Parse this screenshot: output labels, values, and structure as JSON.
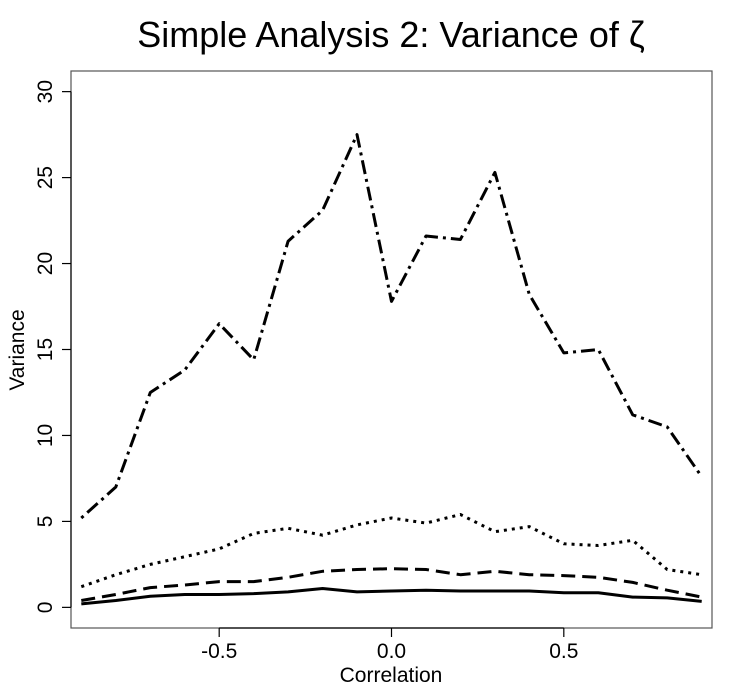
{
  "chart_data": {
    "type": "line",
    "title": "Simple Analysis 2: Variance of ζ",
    "xlabel": "Correlation",
    "ylabel": "Variance",
    "xlim": [
      -0.93,
      0.93
    ],
    "ylim": [
      -1.2,
      31.2
    ],
    "x_ticks": [
      -0.5,
      0.0,
      0.5
    ],
    "x_tick_labels": [
      "-0.5",
      "0.0",
      "0.5"
    ],
    "y_ticks": [
      0,
      5,
      10,
      15,
      20,
      25,
      30
    ],
    "y_tick_labels": [
      "0",
      "5",
      "10",
      "15",
      "20",
      "25",
      "30"
    ],
    "grid": false,
    "x": [
      -0.9,
      -0.8,
      -0.7,
      -0.6,
      -0.5,
      -0.4,
      -0.3,
      -0.2,
      -0.1,
      0.0,
      0.1,
      0.2,
      0.3,
      0.4,
      0.5,
      0.6,
      0.7,
      0.8,
      0.9
    ],
    "series": [
      {
        "style": "solid",
        "values": [
          0.2,
          0.4,
          0.65,
          0.75,
          0.75,
          0.8,
          0.9,
          1.1,
          0.9,
          0.95,
          1.0,
          0.95,
          0.95,
          0.95,
          0.85,
          0.85,
          0.6,
          0.55,
          0.35
        ]
      },
      {
        "style": "dashed",
        "values": [
          0.4,
          0.75,
          1.15,
          1.3,
          1.5,
          1.5,
          1.75,
          2.1,
          2.2,
          2.25,
          2.2,
          1.9,
          2.1,
          1.9,
          1.85,
          1.75,
          1.45,
          1.0,
          0.6
        ]
      },
      {
        "style": "dotted",
        "values": [
          1.2,
          1.9,
          2.5,
          2.95,
          3.4,
          4.3,
          4.6,
          4.2,
          4.8,
          5.2,
          4.9,
          5.4,
          4.4,
          4.7,
          3.7,
          3.6,
          3.9,
          2.2,
          1.9
        ]
      },
      {
        "style": "dot-dash",
        "values": [
          5.2,
          7.0,
          12.5,
          13.8,
          16.5,
          14.4,
          21.3,
          23.1,
          27.5,
          17.8,
          21.6,
          21.4,
          25.3,
          18.2,
          14.8,
          15.0,
          11.2,
          10.5,
          7.6
        ]
      }
    ]
  }
}
